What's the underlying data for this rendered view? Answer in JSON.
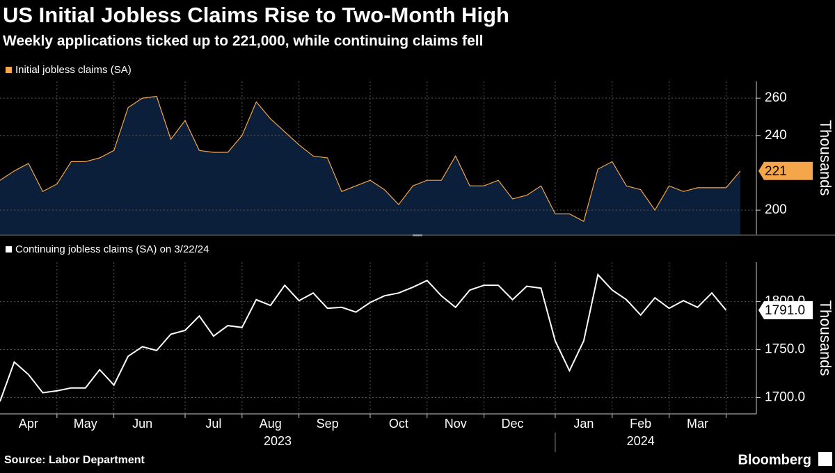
{
  "title": "US Initial Jobless Claims Rise to Two-Month High",
  "subtitle": "Weekly applications ticked up to 221,000, while continuing claims fell",
  "source": "Source: Labor Department",
  "brand": "Bloomberg",
  "x_axis": {
    "categories": [
      null,
      null,
      "Apr",
      null,
      null,
      null,
      "May",
      null,
      null,
      null,
      "Jun",
      null,
      null,
      null,
      null,
      "Jul",
      null,
      null,
      null,
      "Aug",
      null,
      null,
      null,
      "Sep",
      null,
      null,
      null,
      null,
      "Oct",
      null,
      null,
      null,
      "Nov",
      null,
      null,
      null,
      "Dec",
      null,
      null,
      null,
      null,
      "Jan",
      null,
      null,
      null,
      "Feb",
      null,
      null,
      null,
      "Mar",
      null,
      null,
      null
    ],
    "years": [
      {
        "label": "2023",
        "first": "Apr",
        "last": "Dec"
      },
      {
        "label": "2024",
        "first": "Jan",
        "last": "Mar"
      }
    ]
  },
  "chart_data": [
    {
      "type": "area",
      "axis_title": "Thousands",
      "grid": true,
      "ylim": [
        187,
        269
      ],
      "yticks": [
        200,
        240,
        260
      ],
      "series": [
        {
          "name": "Initial jobless claims (SA)",
          "color": "#f5a54a",
          "fill": "#0b1f3a",
          "values": [
            216,
            221,
            225,
            210,
            214,
            226,
            226,
            228,
            232,
            255,
            260,
            261,
            238,
            248,
            232,
            231,
            231,
            240,
            258,
            249,
            242,
            235,
            229,
            228,
            210,
            213,
            216,
            211,
            203,
            213,
            216,
            216,
            229,
            213,
            213,
            216,
            206,
            208,
            213,
            198,
            198,
            194,
            222,
            226,
            213,
            211,
            200,
            213,
            210,
            212,
            212,
            212,
            221
          ]
        }
      ]
    },
    {
      "type": "line",
      "axis_title": "Thousands",
      "grid": true,
      "ylim": [
        1683,
        1841
      ],
      "yticks": [
        {
          "value": 1700,
          "label": "1700.0"
        },
        {
          "value": 1750,
          "label": "1750.0"
        },
        {
          "value": 1800,
          "label": "1800.0"
        }
      ],
      "series": [
        {
          "name": "Continuing jobless claims (SA) on 3/22/24",
          "color": "#ffffff",
          "values": [
            1696,
            1737,
            1724,
            1705,
            1707,
            1710,
            1710,
            1729,
            1713,
            1743,
            1753,
            1749,
            1766,
            1770,
            1785,
            1764,
            1775,
            1773,
            1802,
            1796,
            1817,
            1801,
            1809,
            1793,
            1794,
            1789,
            1799,
            1806,
            1809,
            1815,
            1822,
            1806,
            1794,
            1812,
            1817,
            1817,
            1802,
            1816,
            1814,
            1759,
            1728,
            1759,
            1828,
            1812,
            1802,
            1786,
            1804,
            1793,
            1801,
            1794,
            1809,
            1791,
            null
          ],
          "value_labels": [
            null,
            null,
            null,
            null,
            null,
            null,
            null,
            null,
            null,
            null,
            null,
            null,
            null,
            null,
            null,
            null,
            null,
            null,
            null,
            null,
            null,
            null,
            null,
            null,
            null,
            null,
            null,
            null,
            null,
            null,
            null,
            null,
            null,
            null,
            null,
            null,
            null,
            null,
            null,
            null,
            null,
            null,
            null,
            null,
            null,
            null,
            null,
            null,
            null,
            null,
            null,
            "1791.0",
            null
          ]
        }
      ]
    }
  ]
}
